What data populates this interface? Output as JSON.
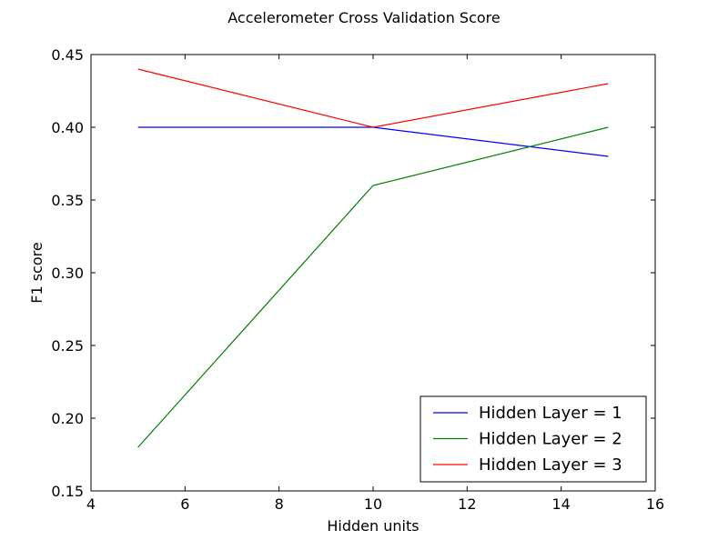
{
  "chart_data": {
    "type": "line",
    "title": "Accelerometer Cross Validation Score",
    "xlabel": "Hidden units",
    "ylabel": "F1 score",
    "xlim": [
      4,
      16
    ],
    "ylim": [
      0.15,
      0.45
    ],
    "xticks": [
      4,
      6,
      8,
      10,
      12,
      14,
      16
    ],
    "yticks": [
      0.15,
      0.2,
      0.25,
      0.3,
      0.35,
      0.4,
      0.45
    ],
    "xtick_labels": [
      "4",
      "6",
      "8",
      "10",
      "12",
      "14",
      "16"
    ],
    "ytick_labels": [
      "0.15",
      "0.20",
      "0.25",
      "0.30",
      "0.35",
      "0.40",
      "0.45"
    ],
    "x": [
      5,
      10,
      15
    ],
    "series": [
      {
        "name": "Hidden Layer = 1",
        "values": [
          0.4,
          0.4,
          0.38
        ],
        "color": "#0000ff"
      },
      {
        "name": "Hidden Layer = 2",
        "values": [
          0.18,
          0.36,
          0.4
        ],
        "color": "#008000"
      },
      {
        "name": "Hidden Layer = 3",
        "values": [
          0.44,
          0.4,
          0.43
        ],
        "color": "#ff0000"
      }
    ],
    "grid": false,
    "legend_position": "lower-right"
  }
}
